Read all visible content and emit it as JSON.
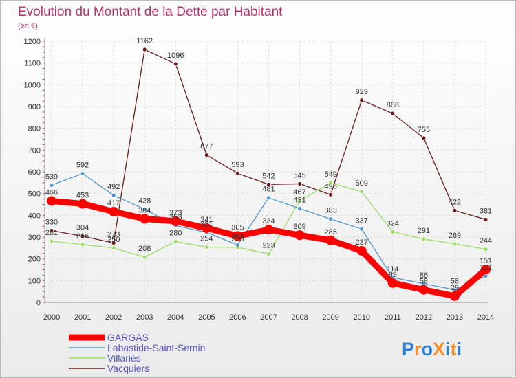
{
  "chart_data": {
    "type": "line",
    "title": "Evolution du Montant de la Dette par Habitant",
    "subtitle": "(en €)",
    "xlabel": "",
    "ylabel": "",
    "ylim": [
      0,
      1200
    ],
    "yticks": [
      0,
      100,
      200,
      300,
      400,
      500,
      600,
      700,
      800,
      900,
      1000,
      1100,
      1200
    ],
    "grid": true,
    "legend_position": "bottom-left",
    "categories": [
      "2000",
      "2001",
      "2002",
      "2003",
      "2004",
      "2005",
      "2006",
      "2007",
      "2008",
      "2009",
      "2010",
      "2011",
      "2012",
      "2013",
      "2014"
    ],
    "series": [
      {
        "name": "GARGAS",
        "color": "#ff0000",
        "values": [
          466,
          453,
          417,
          384,
          373,
          341,
          305,
          334,
          309,
          285,
          237,
          89,
          58,
          29,
          151
        ]
      },
      {
        "name": "Labastide-Saint-Sernin",
        "color": "#4f97d1",
        "values": [
          539,
          592,
          492,
          428,
          353,
          321,
          264,
          481,
          431,
          383,
          337,
          114,
          86,
          58,
          121
        ]
      },
      {
        "name": "Villariès",
        "color": "#99dd66",
        "values": [
          281,
          266,
          250,
          208,
          280,
          254,
          253,
          223,
          467,
          549,
          509,
          324,
          291,
          269,
          244
        ]
      },
      {
        "name": "Vacquiers",
        "color": "#6b1a1a",
        "values": [
          330,
          304,
          273,
          1162,
          1096,
          677,
          593,
          542,
          545,
          495,
          929,
          868,
          755,
          422,
          381
        ]
      }
    ]
  },
  "logo": {
    "text": "ProXiti"
  }
}
